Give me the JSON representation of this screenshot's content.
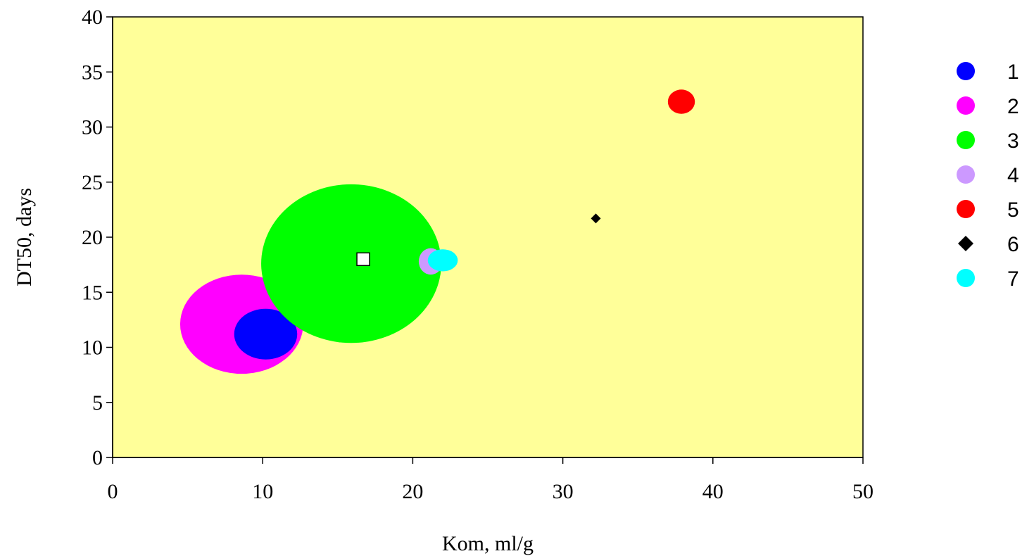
{
  "chart_data": {
    "type": "scatter",
    "xlabel": "Kom, ml/g",
    "ylabel": "DT50, days",
    "xlim": [
      0,
      50
    ],
    "ylim": [
      0,
      40
    ],
    "x_ticks": [
      0,
      10,
      20,
      30,
      40,
      50
    ],
    "y_ticks": [
      0,
      5,
      10,
      15,
      20,
      25,
      30,
      35,
      40
    ],
    "x_tick_labels": [
      "0",
      "10",
      "20",
      "30",
      "40",
      "50"
    ],
    "y_tick_labels": [
      "0",
      "5",
      "10",
      "15",
      "20",
      "25",
      "30",
      "35",
      "40"
    ],
    "grid": false,
    "plot_background": "#ffff99",
    "legend_position": "right",
    "series": [
      {
        "name": "1",
        "marker": "ellipse",
        "color": "#0000ff",
        "x": 10.2,
        "y": 11.2,
        "x_spread": 2.1,
        "y_spread": 2.3
      },
      {
        "name": "2",
        "marker": "ellipse",
        "color": "#ff00ff",
        "x": 8.6,
        "y": 12.1,
        "x_spread": 4.1,
        "y_spread": 4.5
      },
      {
        "name": "3",
        "marker": "ellipse",
        "color": "#00ff00",
        "x": 15.9,
        "y": 17.6,
        "x_spread": 6.0,
        "y_spread": 7.2
      },
      {
        "name": "4",
        "marker": "ellipse",
        "color": "#cc99ff",
        "x": 21.2,
        "y": 17.8,
        "x_spread": 0.8,
        "y_spread": 1.2
      },
      {
        "name": "5",
        "marker": "ellipse",
        "color": "#ff0000",
        "x": 37.9,
        "y": 32.3,
        "x_spread": 0.9,
        "y_spread": 1.1
      },
      {
        "name": "6",
        "marker": "diamond",
        "color": "#000000",
        "x": 32.2,
        "y": 21.7
      },
      {
        "name": "7",
        "marker": "ellipse",
        "color": "#00ffff",
        "x": 22.0,
        "y": 17.9,
        "x_spread": 1.0,
        "y_spread": 1.0
      }
    ],
    "extra_marker": {
      "marker": "square",
      "color": "#ffffff",
      "stroke": "#000000",
      "x": 16.7,
      "y": 18.0
    }
  }
}
